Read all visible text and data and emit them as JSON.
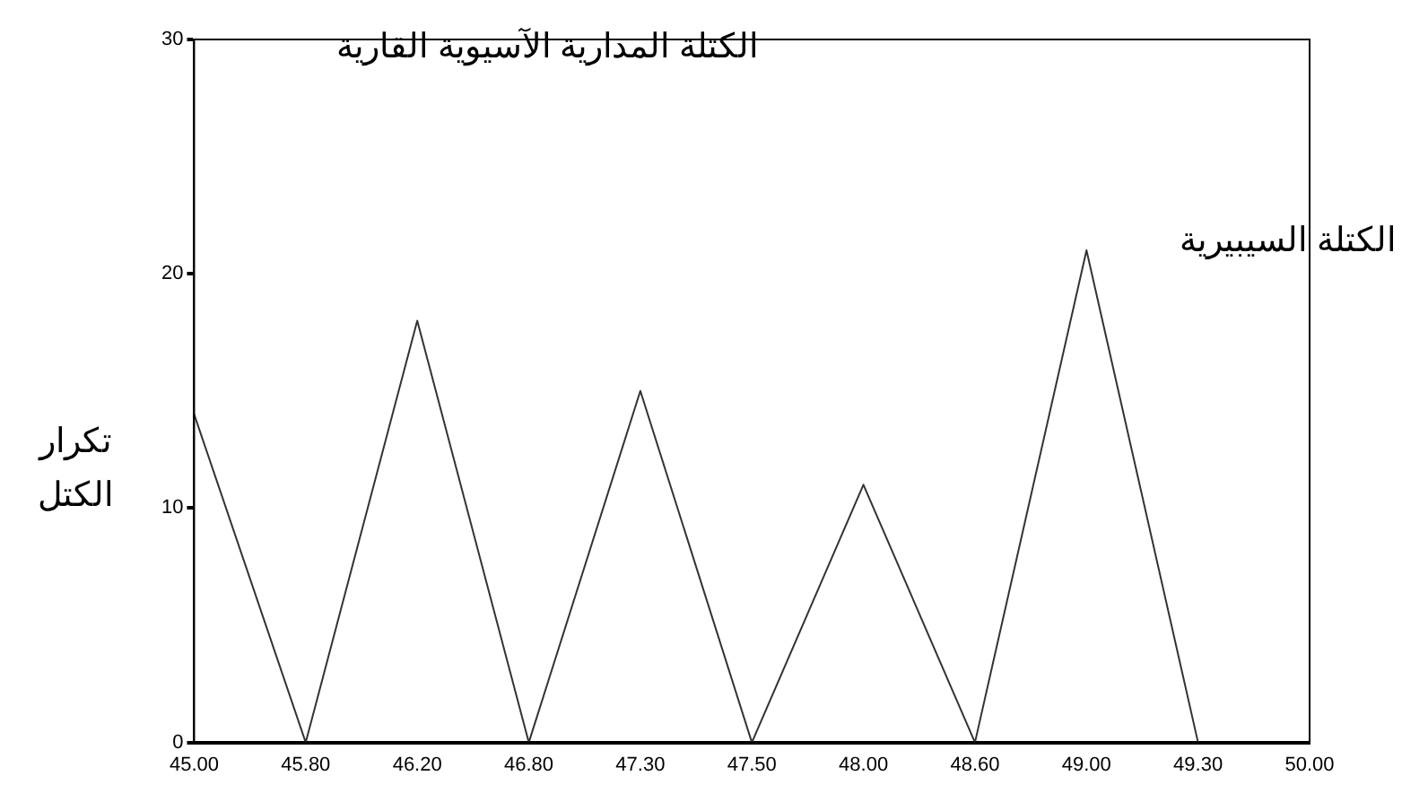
{
  "chart_data": {
    "type": "line",
    "title": "الكتلة المدارية الآسيوية القارية",
    "ylabel": "تكرار\nالكتل",
    "annotations": [
      "الكتلة السيبيرية"
    ],
    "categories": [
      "45.00",
      "45.80",
      "46.20",
      "46.80",
      "47.30",
      "47.50",
      "48.00",
      "48.60",
      "49.00",
      "49.30",
      "50.00"
    ],
    "series": [
      {
        "color": "#333333",
        "values": [
          14,
          0,
          18,
          0,
          15,
          0,
          11,
          0,
          21,
          0,
          null
        ]
      }
    ],
    "ylim": [
      0,
      30
    ],
    "yticks": [
      0,
      10,
      20,
      30
    ],
    "grid": false,
    "legend": false,
    "marker": "none",
    "line_style": "solid"
  }
}
